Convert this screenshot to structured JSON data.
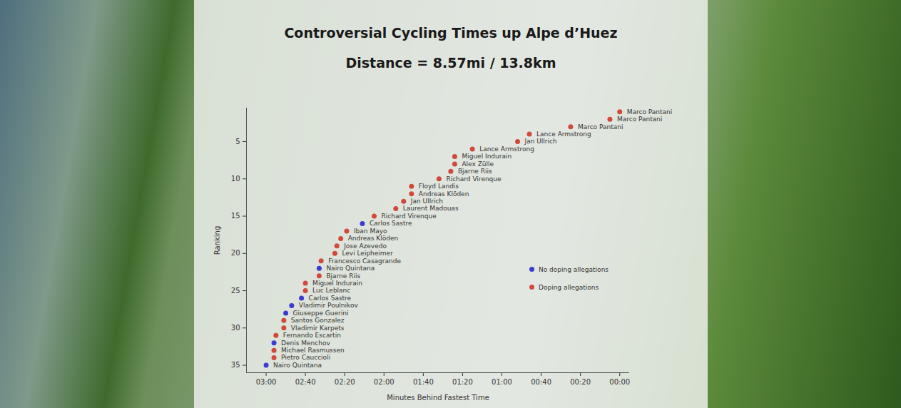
{
  "chart_data": {
    "type": "scatter",
    "title": "Controversial Cycling Times up Alpe d’Huez",
    "subtitle": "Distance = 8.57mi / 13.8km",
    "x_label": "Minutes Behind Fastest Time",
    "y_label": "Ranking",
    "xlim": [
      190,
      -5
    ],
    "xticks": [
      {
        "value": 180,
        "label": "03:00"
      },
      {
        "value": 160,
        "label": "02:40"
      },
      {
        "value": 140,
        "label": "02:20"
      },
      {
        "value": 120,
        "label": "02:00"
      },
      {
        "value": 100,
        "label": "01:40"
      },
      {
        "value": 80,
        "label": "01:20"
      },
      {
        "value": 60,
        "label": "01:00"
      },
      {
        "value": 40,
        "label": "00:40"
      },
      {
        "value": 20,
        "label": "00:20"
      },
      {
        "value": 0,
        "label": "00:00"
      }
    ],
    "ylim": [
      0.5,
      36
    ],
    "yticks": [
      5,
      10,
      15,
      20,
      25,
      30,
      35
    ],
    "legend": "right",
    "series": [
      {
        "name": "No doping allegations",
        "color": "#3b3bd1",
        "x": [
          131,
          153,
          162,
          167,
          170,
          176,
          180
        ],
        "y": [
          16,
          22,
          26,
          27,
          28,
          32,
          35
        ],
        "labels": [
          "Carlos Sastre",
          "Nairo Quintana",
          "Carlos Sastre",
          "Vladimir Poulnikov",
          "Giuseppe Guerini",
          "Denis Menchov",
          "Nairo Quintana"
        ]
      },
      {
        "name": "Doping allegations",
        "color": "#d04a3c",
        "x": [
          0,
          5,
          25,
          46,
          52,
          75,
          84,
          84,
          86,
          92,
          106,
          106,
          110,
          114,
          125,
          139,
          142,
          144,
          145,
          152,
          153,
          160,
          160,
          171,
          171,
          175,
          176,
          176
        ],
        "y": [
          1,
          2,
          3,
          4,
          5,
          6,
          7,
          8,
          9,
          10,
          11,
          12,
          13,
          14,
          15,
          17,
          18,
          19,
          20,
          21,
          23,
          24,
          25,
          29,
          30,
          31,
          33,
          34
        ],
        "labels": [
          "Marco Pantani",
          "Marco Pantani",
          "Marco Pantani",
          "Lance Armstrong",
          "Jan Ullrich",
          "Lance Armstrong",
          "Miguel Indurain",
          "Alex Zülle",
          "Bjarne Riis",
          "Richard Virenque",
          "Floyd Landis",
          "Andreas Klöden",
          "Jan Ullrich",
          "Laurent Madouas",
          "Richard Virenque",
          "Iban Mayo",
          "Andreas Klöden",
          "Jose Azevedo",
          "Levi Leipheimer",
          "Francesco Casagrande",
          "Bjarne Riis",
          "Miguel Indurain",
          "Luc Leblanc",
          "Santos Gonzalez",
          "Vladimir Karpets",
          "Fernando Escartin",
          "Michael Rasmussen",
          "Pietro Cauccioli"
        ]
      }
    ]
  }
}
